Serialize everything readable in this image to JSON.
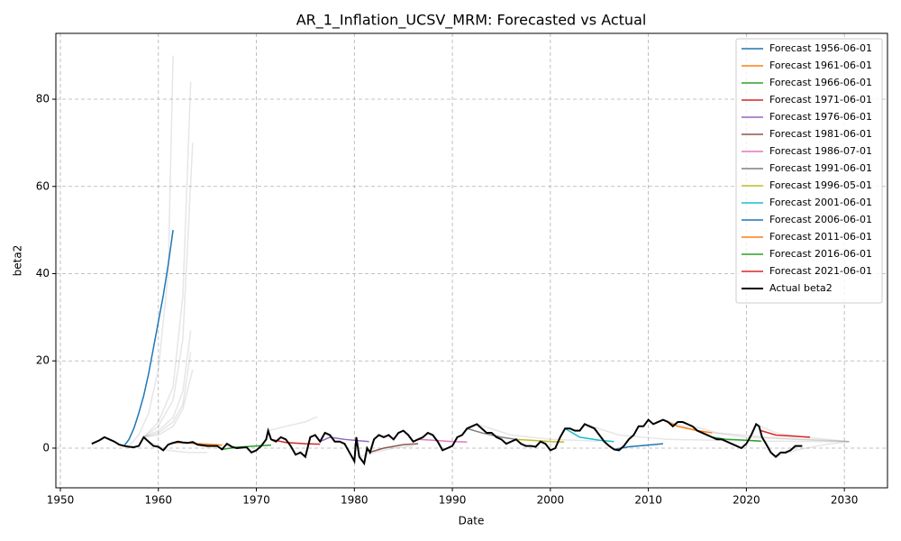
{
  "chart_data": {
    "type": "line",
    "title": "AR_1_Inflation_UCSV_MRM: Forecasted vs Actual",
    "xlabel": "Date",
    "ylabel": "beta2",
    "xlim": [
      1949.54,
      2034.4
    ],
    "xticks": [
      1950,
      1960,
      1970,
      1980,
      1990,
      2000,
      2010,
      2020,
      2030
    ],
    "ylim": [
      -9.1,
      95.1
    ],
    "yticks": [
      0,
      20,
      40,
      60,
      80
    ],
    "grid": true,
    "legend": "upper right",
    "series": [
      {
        "name": "Forecast 1956-06-01",
        "color": "#1f77b4",
        "x": [
          1956.5,
          1957,
          1957.5,
          1958,
          1958.5,
          1959,
          1959.5,
          1960,
          1960.5,
          1961,
          1961.5
        ],
        "values": [
          0.5,
          2,
          4.5,
          8,
          12,
          17,
          23,
          29,
          35,
          42,
          50
        ]
      },
      {
        "name": "Forecast 1961-06-01",
        "color": "#ff7f0e",
        "x": [
          1961.5,
          1962.5,
          1964,
          1966.5
        ],
        "values": [
          1.2,
          1.3,
          1.0,
          0.7
        ]
      },
      {
        "name": "Forecast 1966-06-01",
        "color": "#2ca02c",
        "x": [
          1966.5,
          1968,
          1970,
          1971.5
        ],
        "values": [
          -0.3,
          0.2,
          0.5,
          0.7
        ]
      },
      {
        "name": "Forecast 1971-06-01",
        "color": "#d62728",
        "x": [
          1971.5,
          1973,
          1975,
          1976.5
        ],
        "values": [
          2,
          1.3,
          1,
          0.9
        ]
      },
      {
        "name": "Forecast 1976-06-01",
        "color": "#9467bd",
        "x": [
          1976.5,
          1977.5,
          1979,
          1981.5
        ],
        "values": [
          1.5,
          2.5,
          2,
          1.5
        ]
      },
      {
        "name": "Forecast 1981-06-01",
        "color": "#8c564b",
        "x": [
          1981.5,
          1983,
          1985,
          1986.5
        ],
        "values": [
          -1,
          0,
          0.8,
          1
        ]
      },
      {
        "name": "Forecast 1986-07-01",
        "color": "#e377c2",
        "x": [
          1986.5,
          1988,
          1990,
          1991.5
        ],
        "values": [
          2,
          1.8,
          1.5,
          1.4
        ]
      },
      {
        "name": "Forecast 1991-06-01",
        "color": "#7f7f7f",
        "x": [
          1991.5,
          1993,
          1995,
          1996.5
        ],
        "values": [
          4.5,
          3.5,
          2.5,
          2
        ]
      },
      {
        "name": "Forecast 1996-05-01",
        "color": "#bcbd22",
        "x": [
          1996.4,
          1998,
          2000,
          2001.4
        ],
        "values": [
          2,
          1.8,
          1.5,
          1.4
        ]
      },
      {
        "name": "Forecast 2001-06-01",
        "color": "#17becf",
        "x": [
          2001.5,
          2003,
          2005,
          2006.5
        ],
        "values": [
          4.5,
          2.5,
          1.8,
          1.5
        ]
      },
      {
        "name": "Forecast 2006-06-01",
        "color": "#1f77b4",
        "x": [
          2006.5,
          2008,
          2010,
          2011.5
        ],
        "values": [
          -0.3,
          0.3,
          0.7,
          1
        ]
      },
      {
        "name": "Forecast 2011-06-01",
        "color": "#ff7f0e",
        "x": [
          2011.5,
          2013,
          2015,
          2016.5
        ],
        "values": [
          6.5,
          5,
          4,
          3.5
        ]
      },
      {
        "name": "Forecast 2016-06-01",
        "color": "#2ca02c",
        "x": [
          2016.5,
          2018,
          2020,
          2021.5
        ],
        "values": [
          2.5,
          2,
          1.8,
          1.6
        ]
      },
      {
        "name": "Forecast 2021-06-01",
        "color": "#d62728",
        "x": [
          2021.5,
          2023,
          2025,
          2026.5
        ],
        "values": [
          4,
          3,
          2.7,
          2.5
        ]
      },
      {
        "name": "Actual beta2",
        "color": "#000000",
        "width": 2,
        "x": [
          1953.2,
          1954,
          1954.5,
          1955,
          1955.5,
          1956,
          1956.5,
          1957,
          1957.5,
          1958,
          1958.5,
          1959,
          1959.5,
          1960,
          1960.5,
          1961,
          1961.5,
          1962,
          1962.5,
          1963,
          1963.5,
          1964,
          1965,
          1966,
          1966.5,
          1967,
          1967.5,
          1968,
          1969,
          1969.5,
          1970,
          1970.5,
          1971,
          1971.2,
          1971.5,
          1972,
          1972.5,
          1973,
          1973.5,
          1974,
          1974.5,
          1975,
          1975.5,
          1976,
          1976.5,
          1977,
          1977.5,
          1978,
          1978.5,
          1979,
          1979.5,
          1980,
          1980.2,
          1980.5,
          1981,
          1981.3,
          1981.6,
          1982,
          1982.5,
          1983,
          1983.5,
          1984,
          1984.5,
          1985,
          1985.5,
          1986,
          1986.5,
          1987,
          1987.5,
          1988,
          1988.5,
          1989,
          1989.5,
          1990,
          1990.5,
          1991,
          1991.5,
          1992,
          1992.5,
          1993,
          1993.5,
          1994,
          1994.5,
          1995,
          1995.5,
          1996,
          1996.5,
          1997,
          1997.5,
          1998,
          1998.5,
          1999,
          1999.5,
          2000,
          2000.5,
          2001,
          2001.5,
          2002,
          2002.5,
          2003,
          2003.5,
          2004,
          2004.5,
          2005,
          2005.5,
          2006,
          2006.5,
          2007,
          2007.5,
          2008,
          2008.5,
          2009,
          2009.5,
          2010,
          2010.5,
          2011,
          2011.5,
          2012,
          2012.5,
          2013,
          2013.5,
          2014,
          2014.5,
          2015,
          2015.5,
          2016,
          2016.5,
          2017,
          2017.5,
          2018,
          2018.5,
          2019,
          2019.5,
          2020,
          2020.5,
          2021,
          2021.3,
          2021.6,
          2022,
          2022.5,
          2023,
          2023.5,
          2024,
          2024.5,
          2025,
          2025.7
        ],
        "values": [
          1,
          1.8,
          2.5,
          2,
          1.5,
          0.8,
          0.5,
          0.3,
          0.2,
          0.5,
          2.5,
          1.5,
          0.5,
          0.3,
          -0.5,
          0.8,
          1.2,
          1.5,
          1.3,
          1.2,
          1.4,
          0.8,
          0.5,
          0.5,
          -0.3,
          1,
          0.3,
          0,
          0.2,
          -1,
          -0.5,
          0.5,
          2,
          4,
          2,
          1.5,
          2.5,
          2,
          0.5,
          -1.5,
          -1,
          -2,
          2.5,
          3,
          1.5,
          3.5,
          3,
          1.5,
          1.5,
          1,
          -1,
          -3,
          2.5,
          -2,
          -3.5,
          0,
          -1,
          2,
          3,
          2.5,
          3,
          2,
          3.5,
          4,
          3,
          1.5,
          2,
          2.5,
          3.5,
          3,
          1.5,
          -0.5,
          0,
          0.5,
          2.5,
          3,
          4.5,
          5,
          5.5,
          4.5,
          3.5,
          3.5,
          2.5,
          2,
          1,
          1.5,
          2,
          1,
          0.5,
          0.5,
          0.3,
          1.5,
          1,
          -0.5,
          0,
          2.5,
          4.5,
          4.5,
          4,
          4,
          5.5,
          5,
          4.5,
          3,
          1.5,
          0.5,
          -0.3,
          -0.5,
          0.5,
          2,
          3,
          5,
          5,
          6.5,
          5.5,
          6,
          6.5,
          6,
          5,
          6,
          6,
          5.5,
          5,
          4,
          3.5,
          3,
          2.5,
          2,
          2,
          1.5,
          1,
          0.5,
          0,
          1,
          3,
          5.5,
          5,
          2.5,
          1,
          -1,
          -2,
          -1,
          -1,
          -0.5,
          0.5,
          0.5
        ]
      }
    ],
    "background_series": [
      {
        "color": "#808080",
        "x": [
          1957,
          1958,
          1959,
          1960,
          1961,
          1961.5
        ],
        "values": [
          0.5,
          3,
          8,
          18,
          40,
          90
        ]
      },
      {
        "color": "#808080",
        "x": [
          1958.5,
          1960,
          1961.5,
          1962.5,
          1963.3
        ],
        "values": [
          2.5,
          6,
          14,
          35,
          84
        ]
      },
      {
        "color": "#808080",
        "x": [
          1958.5,
          1960,
          1961.5,
          1962.5,
          1963.5
        ],
        "values": [
          2.5,
          5,
          11,
          25,
          70
        ]
      },
      {
        "color": "#808080",
        "x": [
          1958.5,
          1960,
          1961.5,
          1962.5,
          1963.3
        ],
        "values": [
          2.5,
          4,
          7,
          13,
          27
        ]
      },
      {
        "color": "#808080",
        "x": [
          1958.5,
          1960,
          1961.5,
          1962.5,
          1963.3
        ],
        "values": [
          2.5,
          3.5,
          6,
          10,
          22
        ]
      },
      {
        "color": "#808080",
        "x": [
          1958.5,
          1960,
          1961.5,
          1962.5,
          1963.5
        ],
        "values": [
          2.5,
          3,
          5,
          9,
          18
        ]
      },
      {
        "color": "#808080",
        "x": [
          1959,
          1961,
          1963,
          1965
        ],
        "values": [
          1.5,
          -0.5,
          -1,
          -1
        ]
      },
      {
        "color": "#808080",
        "x": [
          1971.2,
          1973,
          1975,
          1976.2
        ],
        "values": [
          4,
          5,
          6,
          7.2
        ]
      },
      {
        "color": "#808080",
        "x": [
          1980.5,
          1982,
          1984,
          1986
        ],
        "values": [
          -2,
          -1,
          0,
          0.5
        ]
      },
      {
        "color": "#808080",
        "x": [
          2011.5,
          2015,
          2020,
          2025,
          2030.5
        ],
        "values": [
          6.5,
          4,
          2.5,
          2,
          1.5
        ]
      },
      {
        "color": "#808080",
        "x": [
          2013,
          2017,
          2022,
          2026,
          2030.5
        ],
        "values": [
          6,
          3.5,
          2.5,
          2,
          1.5
        ]
      },
      {
        "color": "#808080",
        "x": [
          2021,
          2023,
          2026,
          2030.5
        ],
        "values": [
          5.5,
          3.5,
          2.5,
          1.5
        ]
      },
      {
        "color": "#808080",
        "x": [
          2023,
          2025,
          2028,
          2030.5
        ],
        "values": [
          -2,
          -0.5,
          0.8,
          1.5
        ]
      },
      {
        "color": "#808080",
        "x": [
          2003.5,
          2007,
          2012,
          2017,
          2022,
          2030.5
        ],
        "values": [
          5.5,
          3,
          2,
          1.8,
          1.6,
          1.5
        ]
      },
      {
        "color": "#808080",
        "x": [
          1992.5,
          1996,
          2000,
          2005
        ],
        "values": [
          5.5,
          3,
          2,
          1.6
        ]
      }
    ]
  }
}
